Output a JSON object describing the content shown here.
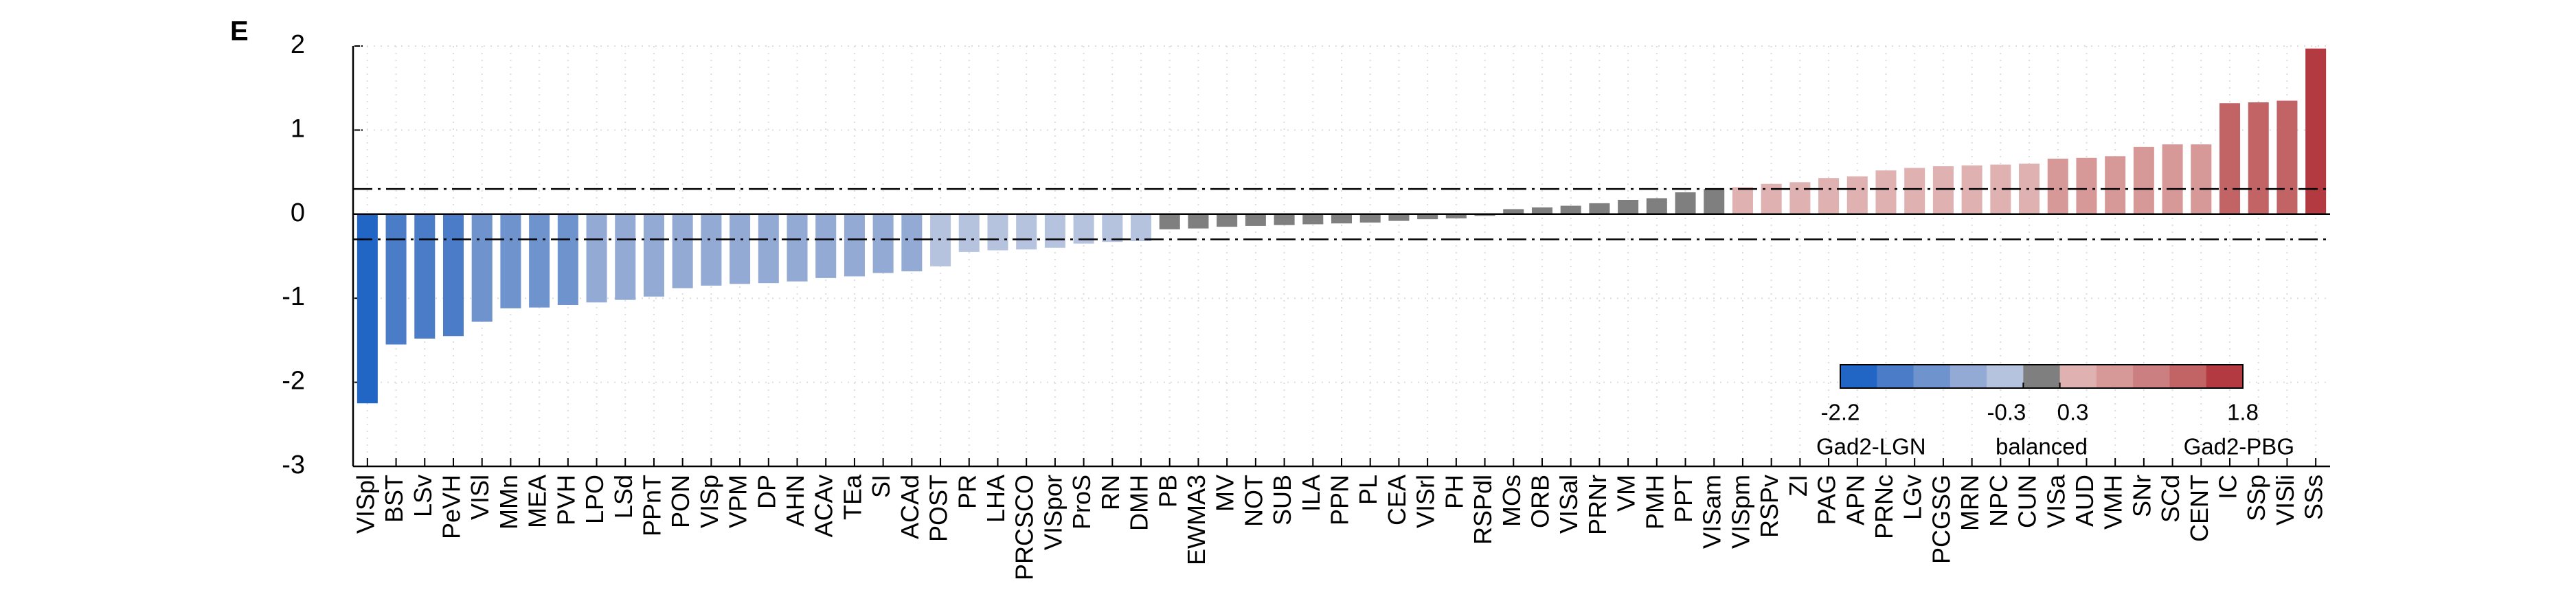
{
  "panel_label": "E",
  "chart_data": {
    "type": "bar",
    "categories": [
      "VISpl",
      "BST",
      "LSv",
      "PeVH",
      "VISl",
      "MMn",
      "MEA",
      "PVH",
      "LPO",
      "LSd",
      "PPnT",
      "PON",
      "VISp",
      "VPM",
      "DP",
      "AHN",
      "ACAv",
      "TEa",
      "SI",
      "ACAd",
      "POST",
      "PR",
      "LHA",
      "PRCSCO",
      "VISpor",
      "ProS",
      "RN",
      "DMH",
      "PB",
      "EWMA3",
      "MV",
      "NOT",
      "SUB",
      "ILA",
      "PPN",
      "PL",
      "CEA",
      "VISrl",
      "PH",
      "RSPdl",
      "MOs",
      "ORB",
      "VISal",
      "PRNr",
      "VM",
      "PMH",
      "PPT",
      "VISam",
      "VISpm",
      "RSPv",
      "ZI",
      "PAG",
      "APN",
      "PRNc",
      "LGv",
      "PCGSG",
      "MRN",
      "NPC",
      "CUN",
      "VISa",
      "AUD",
      "VMH",
      "SNr",
      "SCd",
      "CENT",
      "IC",
      "SSp",
      "VISli",
      "SSs"
    ],
    "values": [
      -2.25,
      -1.55,
      -1.48,
      -1.45,
      -1.28,
      -1.12,
      -1.11,
      -1.08,
      -1.05,
      -1.02,
      -0.98,
      -0.88,
      -0.85,
      -0.83,
      -0.82,
      -0.8,
      -0.76,
      -0.74,
      -0.7,
      -0.68,
      -0.62,
      -0.45,
      -0.43,
      -0.42,
      -0.4,
      -0.35,
      -0.33,
      -0.32,
      -0.18,
      -0.17,
      -0.15,
      -0.14,
      -0.13,
      -0.12,
      -0.11,
      -0.1,
      -0.08,
      -0.06,
      -0.05,
      -0.02,
      0.06,
      0.08,
      0.1,
      0.13,
      0.17,
      0.19,
      0.26,
      0.3,
      0.32,
      0.36,
      0.38,
      0.43,
      0.45,
      0.52,
      0.55,
      0.57,
      0.58,
      0.59,
      0.6,
      0.66,
      0.67,
      0.69,
      0.8,
      0.83,
      0.83,
      1.32,
      1.33,
      1.35,
      1.97
    ],
    "ylim": [
      -3,
      2
    ],
    "yticks": [
      -3,
      -2,
      -1,
      0,
      1,
      2
    ],
    "grid": true,
    "thresholds": [
      -0.3,
      0.3
    ],
    "colorbar": {
      "colors": [
        "#2166c4",
        "#4a7cc8",
        "#6f93cc",
        "#93aad4",
        "#b5c3de",
        "#7f7f7f",
        "#e0b1b1",
        "#d79898",
        "#cc7f81",
        "#c26366",
        "#b23a40"
      ],
      "ticks": [
        -2.2,
        -0.3,
        0.3,
        1.8
      ],
      "names": [
        "Gad2-LGN",
        "balanced",
        "Gad2-PBG"
      ]
    }
  }
}
